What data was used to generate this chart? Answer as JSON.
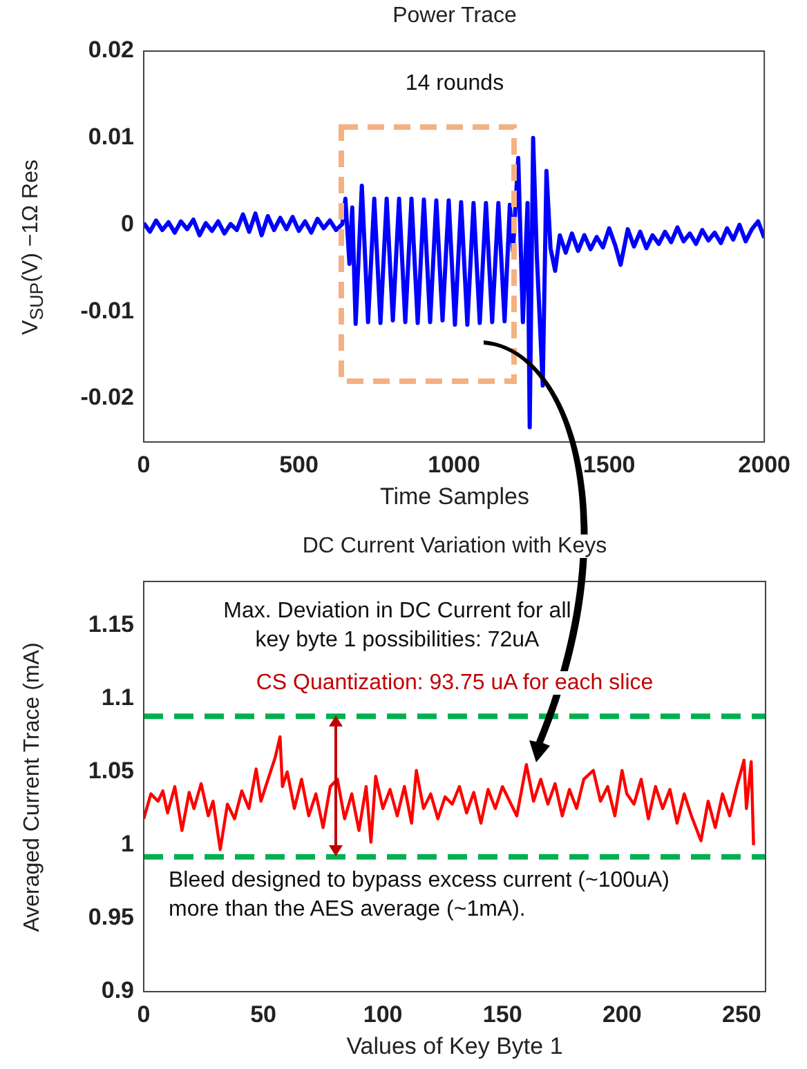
{
  "chart_data": [
    {
      "type": "line",
      "title": "Power Trace",
      "xlabel": "Time Samples",
      "ylabel": "V$_{SUP}$(V) −1Ω Res",
      "xlim": [
        0,
        2000
      ],
      "xticks": [
        0,
        500,
        1000,
        1500,
        2000
      ],
      "ylim": [
        -0.025,
        0.02
      ],
      "yticks": [
        -0.02,
        -0.01,
        0,
        0.01,
        0.02
      ],
      "grid": false,
      "legend": false,
      "annotations": [
        "14 rounds"
      ],
      "series": [
        {
          "color": "#0000ff",
          "x": [
            0,
            20,
            40,
            60,
            80,
            100,
            120,
            140,
            160,
            180,
            200,
            220,
            240,
            260,
            280,
            300,
            320,
            340,
            360,
            380,
            400,
            420,
            440,
            460,
            480,
            500,
            520,
            540,
            560,
            580,
            600,
            620,
            640,
            650,
            663,
            672,
            683,
            703,
            723,
            743,
            763,
            783,
            803,
            823,
            843,
            863,
            883,
            903,
            923,
            943,
            963,
            983,
            1003,
            1023,
            1043,
            1063,
            1083,
            1103,
            1123,
            1143,
            1163,
            1180,
            1190,
            1207,
            1222,
            1237,
            1244,
            1255,
            1267,
            1286,
            1298,
            1311,
            1326,
            1341,
            1360,
            1380,
            1400,
            1420,
            1440,
            1460,
            1480,
            1500,
            1520,
            1537,
            1560,
            1580,
            1600,
            1620,
            1640,
            1660,
            1680,
            1700,
            1720,
            1740,
            1760,
            1780,
            1800,
            1820,
            1840,
            1860,
            1880,
            1900,
            1920,
            1940,
            1960,
            1980,
            2000
          ],
          "values": [
            0.0002,
            -0.0008,
            0.0005,
            -0.0006,
            0.0003,
            -0.0009,
            0.0004,
            -0.0005,
            0.0006,
            -0.0012,
            0.0002,
            -0.0007,
            0.0004,
            -0.001,
            0.0001,
            -0.0006,
            0.0012,
            -0.0008,
            0.0013,
            -0.0012,
            0.001,
            -0.0006,
            0.0008,
            -0.0005,
            0.0009,
            -0.0007,
            0.0004,
            -0.0009,
            0.0007,
            -0.0004,
            0.0005,
            -0.0006,
            0.0001,
            0.003,
            -0.0045,
            0.002,
            -0.0114,
            0.0045,
            -0.0112,
            0.003,
            -0.0113,
            0.003,
            -0.011,
            0.003,
            -0.0112,
            0.003,
            -0.0113,
            0.0029,
            -0.0112,
            0.0028,
            -0.011,
            0.0028,
            -0.0115,
            0.0026,
            -0.0115,
            0.0025,
            -0.0113,
            0.0025,
            -0.0112,
            0.0025,
            -0.0111,
            0.0023,
            -0.003,
            0.0077,
            -0.0112,
            0.0025,
            -0.0233,
            0.01,
            -0.0036,
            -0.0185,
            0.0062,
            -0.0027,
            -0.0053,
            -0.0012,
            -0.0032,
            -0.001,
            -0.003,
            -0.0012,
            -0.0028,
            -0.0014,
            -0.0026,
            -0.0004,
            -0.0024,
            -0.0046,
            -0.0005,
            -0.0025,
            -0.0008,
            -0.0027,
            -0.0012,
            -0.0022,
            -0.0008,
            -0.002,
            -0.0003,
            -0.0019,
            -0.001,
            -0.0022,
            -0.0006,
            -0.0018,
            -0.0009,
            -0.0021,
            -0.0004,
            -0.0017,
            0,
            -0.0019,
            -0.0005,
            0.0004,
            -0.0015
          ]
        }
      ]
    },
    {
      "type": "line",
      "title": "DC Current Variation with Keys",
      "xlabel": "Values of Key Byte 1",
      "ylabel": "Averaged Current Trace (mA)",
      "xlim": [
        0,
        260
      ],
      "xticks": [
        0,
        50,
        100,
        150,
        200,
        250
      ],
      "ylim": [
        0.9,
        1.18
      ],
      "yticks": [
        0.9,
        0.95,
        1,
        1.05,
        1.1,
        1.15
      ],
      "grid": false,
      "legend": false,
      "annotations": [
        "Max. Deviation in DC Current for all key byte 1 possibilities: 72uA",
        "CS Quantization: 93.75 uA for each slice",
        "Bleed designed to bypass excess current (~100uA) more than the AES average (~1mA)."
      ],
      "ref_lines": [
        {
          "axis": "y",
          "value": 1.088,
          "color": "#00b050",
          "line_style": "dashed"
        },
        {
          "axis": "y",
          "value": 0.992,
          "color": "#00b050",
          "line_style": "dashed"
        }
      ],
      "series": [
        {
          "color": "#ff0000",
          "x": [
            0,
            3,
            6,
            8,
            10,
            13,
            16,
            19,
            21,
            24,
            27,
            29,
            32,
            35,
            38,
            41,
            44,
            47,
            49,
            52,
            55,
            57,
            58,
            60,
            63,
            66,
            69,
            72,
            75,
            78,
            81,
            84,
            87,
            90,
            93,
            95,
            97,
            100,
            103,
            106,
            109,
            112,
            114,
            117,
            120,
            123,
            126,
            129,
            132,
            135,
            138,
            141,
            144,
            147,
            150,
            153,
            156,
            160,
            163,
            166,
            169,
            172,
            175,
            178,
            181,
            184,
            188,
            191,
            194,
            197,
            200,
            202,
            205,
            208,
            211,
            214,
            217,
            220,
            223,
            226,
            229,
            233,
            236,
            239,
            242,
            245,
            248,
            251,
            252,
            254,
            255
          ],
          "values": [
            1.018,
            1.035,
            1.03,
            1.037,
            1.022,
            1.04,
            1.01,
            1.036,
            1.025,
            1.042,
            1.02,
            1.03,
            0.997,
            1.028,
            1.018,
            1.037,
            1.025,
            1.052,
            1.03,
            1.045,
            1.06,
            1.074,
            1.04,
            1.05,
            1.025,
            1.045,
            1.02,
            1.035,
            1.012,
            1.04,
            1.045,
            1.018,
            1.035,
            1.01,
            1.04,
            1.002,
            1.047,
            1.025,
            1.038,
            1.02,
            1.04,
            1.015,
            1.051,
            1.025,
            1.035,
            1.018,
            1.033,
            1.028,
            1.04,
            1.022,
            1.036,
            1.015,
            1.038,
            1.025,
            1.04,
            1.03,
            1.02,
            1.055,
            1.03,
            1.045,
            1.028,
            1.042,
            1.02,
            1.038,
            1.025,
            1.045,
            1.051,
            1.03,
            1.04,
            1.02,
            1.051,
            1.035,
            1.028,
            1.045,
            1.018,
            1.04,
            1.025,
            1.038,
            1.015,
            1.035,
            1.02,
            1.003,
            1.03,
            1.012,
            1.035,
            1.02,
            1.04,
            1.058,
            1.025,
            1.057,
            1.0
          ]
        }
      ]
    }
  ]
}
